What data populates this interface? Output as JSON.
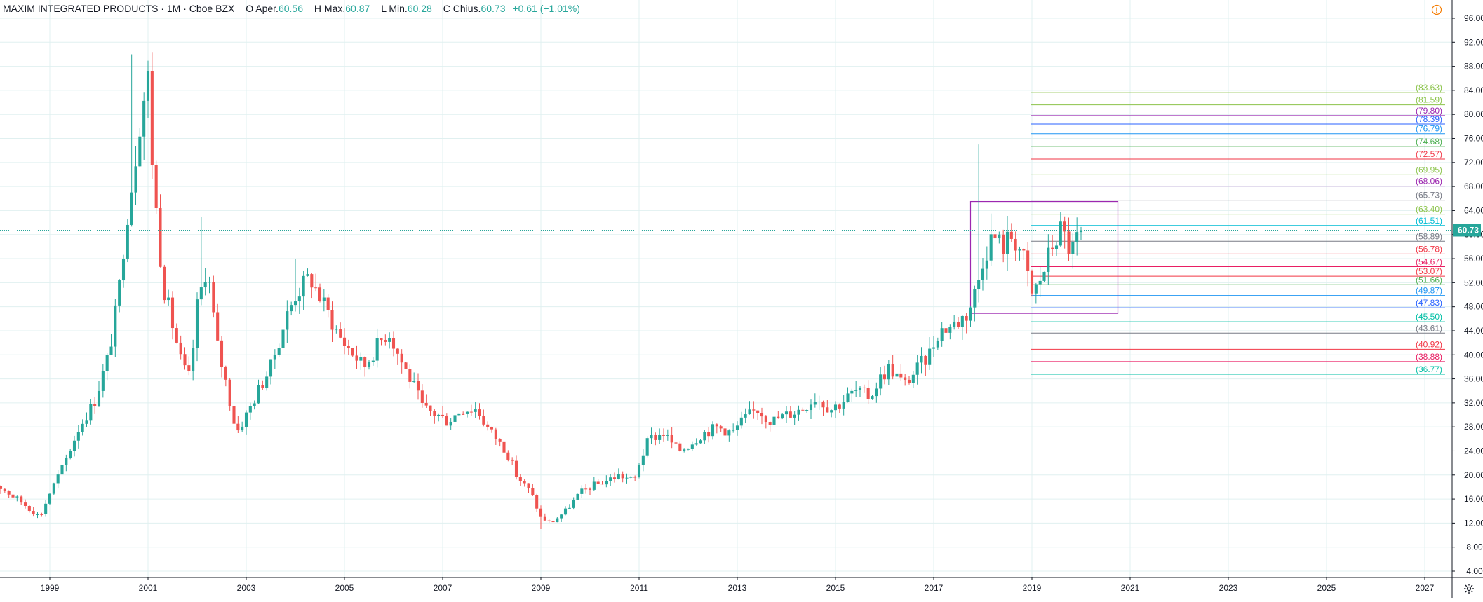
{
  "legend": {
    "symbol": "MAXIM INTEGRATED PRODUCTS · 1M · Cboe BZX",
    "o_label": "O",
    "o_text": "Aper.",
    "o_val": "60.56",
    "h_label": "H",
    "h_text": "Max.",
    "h_val": "60.87",
    "l_label": "L",
    "l_text": "Min.",
    "l_val": "60.28",
    "c_label": "C",
    "c_text": "Chius.",
    "c_val": "60.73",
    "change": "+0.61 (+1.01%)"
  },
  "colors": {
    "up": "#26a69a",
    "down": "#ef5350",
    "grid": "#e0f0f0",
    "last_price_bg": "#26a69a",
    "box": "#9c27b0",
    "text": "#131722"
  },
  "icons": {
    "alert": "alert-circle-icon",
    "settings": "gear-icon"
  },
  "chart_data": {
    "type": "candlestick",
    "timeframe": "1M",
    "x_axis_labels": [
      "1999",
      "2001",
      "2003",
      "2005",
      "2007",
      "2009",
      "2011",
      "2013",
      "2015",
      "2017",
      "2019",
      "2021",
      "2023",
      "2025",
      "2027"
    ],
    "x_range": [
      1997.75,
      2027.6
    ],
    "y_axis_labels": [
      "4.00",
      "8.00",
      "12.00",
      "16.00",
      "20.00",
      "24.00",
      "28.00",
      "32.00",
      "36.00",
      "40.00",
      "44.00",
      "48.00",
      "52.00",
      "56.00",
      "60.00",
      "64.00",
      "68.00",
      "72.00",
      "76.00",
      "80.00",
      "84.00",
      "88.00",
      "92.00",
      "96.00"
    ],
    "ylim": [
      2.2,
      98.5
    ],
    "grid": true,
    "last_price": {
      "value": 60.73,
      "label": "60.73"
    },
    "price_path": [
      [
        1997.75,
        19
      ],
      [
        1998.0,
        18
      ],
      [
        1998.5,
        15
      ],
      [
        1998.8,
        13
      ],
      [
        1999.0,
        17
      ],
      [
        1999.3,
        22
      ],
      [
        1999.6,
        28
      ],
      [
        1999.9,
        32
      ],
      [
        2000.2,
        40
      ],
      [
        2000.4,
        50
      ],
      [
        2000.55,
        62
      ],
      [
        2000.7,
        70
      ],
      [
        2000.85,
        80
      ],
      [
        2001.0,
        86
      ],
      [
        2001.1,
        70
      ],
      [
        2001.3,
        52
      ],
      [
        2001.5,
        45
      ],
      [
        2001.7,
        38
      ],
      [
        2001.85,
        36
      ],
      [
        2002.0,
        48
      ],
      [
        2002.2,
        55
      ],
      [
        2002.4,
        42
      ],
      [
        2002.6,
        35
      ],
      [
        2002.8,
        27
      ],
      [
        2003.0,
        30
      ],
      [
        2003.3,
        35
      ],
      [
        2003.5,
        38
      ],
      [
        2003.8,
        46
      ],
      [
        2004.0,
        50
      ],
      [
        2004.3,
        53
      ],
      [
        2004.6,
        48
      ],
      [
        2004.9,
        43
      ],
      [
        2005.1,
        41
      ],
      [
        2005.4,
        38
      ],
      [
        2005.7,
        42
      ],
      [
        2005.9,
        44
      ],
      [
        2006.1,
        40
      ],
      [
        2006.4,
        35
      ],
      [
        2006.6,
        31
      ],
      [
        2006.9,
        30
      ],
      [
        2007.1,
        29
      ],
      [
        2007.4,
        31
      ],
      [
        2007.7,
        31
      ],
      [
        2007.9,
        28
      ],
      [
        2008.1,
        26
      ],
      [
        2008.3,
        24
      ],
      [
        2008.5,
        20
      ],
      [
        2008.8,
        17
      ],
      [
        2009.0,
        13
      ],
      [
        2009.2,
        12
      ],
      [
        2009.5,
        14
      ],
      [
        2009.8,
        17
      ],
      [
        2010.0,
        18
      ],
      [
        2010.3,
        19
      ],
      [
        2010.6,
        20
      ],
      [
        2010.9,
        19
      ],
      [
        2011.0,
        22
      ],
      [
        2011.2,
        26
      ],
      [
        2011.5,
        27
      ],
      [
        2011.8,
        24
      ],
      [
        2012.0,
        25
      ],
      [
        2012.3,
        27
      ],
      [
        2012.6,
        28
      ],
      [
        2012.9,
        27
      ],
      [
        2013.1,
        29
      ],
      [
        2013.4,
        31
      ],
      [
        2013.7,
        29
      ],
      [
        2014.0,
        30
      ],
      [
        2014.3,
        31
      ],
      [
        2014.6,
        33
      ],
      [
        2014.9,
        31
      ],
      [
        2015.1,
        32
      ],
      [
        2015.4,
        34
      ],
      [
        2015.7,
        33
      ],
      [
        2015.9,
        36
      ],
      [
        2016.1,
        38
      ],
      [
        2016.4,
        35
      ],
      [
        2016.7,
        38
      ],
      [
        2016.9,
        40
      ],
      [
        2017.1,
        44
      ],
      [
        2017.4,
        45
      ],
      [
        2017.7,
        47
      ],
      [
        2017.9,
        52
      ],
      [
        2018.0,
        56
      ],
      [
        2018.2,
        60
      ],
      [
        2018.4,
        58
      ],
      [
        2018.6,
        60
      ],
      [
        2018.8,
        57
      ],
      [
        2019.0,
        50
      ],
      [
        2019.2,
        53
      ],
      [
        2019.4,
        58
      ],
      [
        2019.6,
        61
      ],
      [
        2019.8,
        57
      ],
      [
        2020.0,
        60.73
      ]
    ],
    "notable_highs": [
      [
        2000.7,
        90.0
      ],
      [
        2017.95,
        75.0
      ],
      [
        2018.2,
        63.5
      ],
      [
        2002.1,
        63.0
      ],
      [
        2004.0,
        56.0
      ],
      [
        2009.0,
        11.0
      ]
    ],
    "fib_box": {
      "x_start": 2017.75,
      "x_end": 2020.75,
      "y_low": 46.9,
      "y_high": 65.5
    },
    "levels": [
      {
        "value": 83.63,
        "label": "(83.63)",
        "color": "#8bc34a"
      },
      {
        "value": 81.59,
        "label": "(81.59)",
        "color": "#8bc34a"
      },
      {
        "value": 79.8,
        "label": "(79.80)",
        "color": "#9c27b0"
      },
      {
        "value": 78.39,
        "label": "(78.39)",
        "color": "#2962ff"
      },
      {
        "value": 76.79,
        "label": "(76.79)",
        "color": "#2196f3"
      },
      {
        "value": 74.68,
        "label": "(74.68)",
        "color": "#4caf50"
      },
      {
        "value": 72.57,
        "label": "(72.57)",
        "color": "#f23645"
      },
      {
        "value": 69.95,
        "label": "(69.95)",
        "color": "#8bc34a"
      },
      {
        "value": 68.06,
        "label": "(68.06)",
        "color": "#9c27b0"
      },
      {
        "value": 65.73,
        "label": "(65.73)",
        "color": "#787b86"
      },
      {
        "value": 63.4,
        "label": "(63.40)",
        "color": "#8bc34a"
      },
      {
        "value": 61.51,
        "label": "(61.51)",
        "color": "#00bcd4"
      },
      {
        "value": 58.89,
        "label": "(58.89)",
        "color": "#787b86"
      },
      {
        "value": 56.78,
        "label": "(56.78)",
        "color": "#f23645"
      },
      {
        "value": 54.67,
        "label": "(54.67)",
        "color": "#e91e63"
      },
      {
        "value": 53.07,
        "label": "(53.07)",
        "color": "#f23645"
      },
      {
        "value": 51.66,
        "label": "(51.66)",
        "color": "#4caf50"
      },
      {
        "value": 49.87,
        "label": "(49.87)",
        "color": "#2196f3"
      },
      {
        "value": 47.83,
        "label": "(47.83)",
        "color": "#2962ff"
      },
      {
        "value": 45.5,
        "label": "(45.50)",
        "color": "#00bfa5"
      },
      {
        "value": 43.61,
        "label": "(43.61)",
        "color": "#787b86"
      },
      {
        "value": 40.92,
        "label": "(40.92)",
        "color": "#f23645"
      },
      {
        "value": 38.88,
        "label": "(38.88)",
        "color": "#e91e63"
      },
      {
        "value": 36.77,
        "label": "(36.77)",
        "color": "#00bfa5"
      }
    ]
  }
}
